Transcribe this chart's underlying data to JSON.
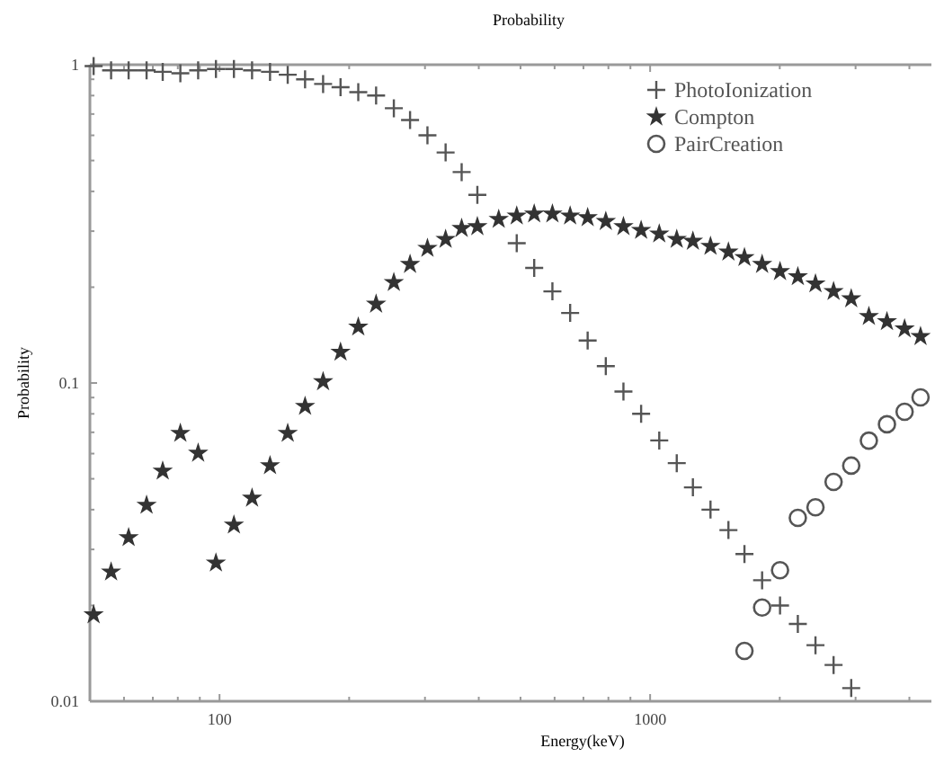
{
  "chart_data": {
    "type": "scatter",
    "title": "Probability",
    "xlabel": "Energy(keV)",
    "ylabel": "Probability",
    "log": "xy",
    "grid": false,
    "legend": "top right",
    "x": [
      51,
      56,
      61.5,
      67.7,
      73.8,
      81.1,
      89.2,
      98.1,
      108,
      119,
      131,
      144,
      158,
      174,
      191,
      210,
      231,
      254,
      277,
      304,
      335,
      365,
      397,
      445,
      490,
      538,
      593,
      652,
      716,
      789,
      867,
      953,
      1050,
      1153,
      1257,
      1381,
      1520,
      1656,
      1820,
      2003,
      2203,
      2421,
      2667,
      2931,
      3221,
      3548,
      3899,
      4246
    ],
    "xlim": [
      50,
      4500
    ],
    "xticks": [
      {
        "value": 60,
        "label": null
      },
      {
        "value": 70,
        "label": null
      },
      {
        "value": 80,
        "label": null
      },
      {
        "value": 90,
        "label": null
      },
      100,
      {
        "value": 200,
        "label": null
      },
      {
        "value": 300,
        "label": null
      },
      {
        "value": 400,
        "label": null
      },
      {
        "value": 500,
        "label": null
      },
      {
        "value": 600,
        "label": null
      },
      {
        "value": 700,
        "label": null
      },
      {
        "value": 800,
        "label": null
      },
      {
        "value": 900,
        "label": null
      },
      1000,
      {
        "value": 2000,
        "label": null
      },
      {
        "value": 3000,
        "label": null
      },
      {
        "value": 4000,
        "label": null
      }
    ],
    "ylim": [
      0.01,
      1
    ],
    "yticks": [
      0.01,
      {
        "value": 0.02,
        "label": null
      },
      {
        "value": 0.03,
        "label": null
      },
      {
        "value": 0.04,
        "label": null
      },
      {
        "value": 0.05,
        "label": null
      },
      {
        "value": 0.06,
        "label": null
      },
      {
        "value": 0.07,
        "label": null
      },
      {
        "value": 0.08,
        "label": null
      },
      {
        "value": 0.09,
        "label": null
      },
      0.1,
      {
        "value": 0.2,
        "label": null
      },
      {
        "value": 0.3,
        "label": null
      },
      {
        "value": 0.4,
        "label": null
      },
      {
        "value": 0.5,
        "label": null
      },
      {
        "value": 0.6,
        "label": null
      },
      {
        "value": 0.7,
        "label": null
      },
      {
        "value": 0.8,
        "label": null
      },
      {
        "value": 0.9,
        "label": null
      },
      1
    ],
    "series": [
      {
        "name": "PhotoIonization",
        "color": "#555555",
        "marker": "cross",
        "x": [
          51,
          56,
          61.5,
          67.7,
          73.8,
          81.1,
          89.2,
          98.1,
          108,
          119,
          131,
          144,
          158,
          174,
          191,
          210,
          231,
          254,
          277,
          304,
          335,
          365,
          397,
          490,
          538,
          593,
          652,
          716,
          789,
          867,
          953,
          1050,
          1153,
          1257,
          1381,
          1520,
          1656,
          1820,
          2003,
          2203,
          2421,
          2667,
          2931
        ],
        "values": [
          0.99,
          0.96,
          0.96,
          0.96,
          0.95,
          0.94,
          0.96,
          0.97,
          0.97,
          0.96,
          0.95,
          0.93,
          0.9,
          0.87,
          0.85,
          0.82,
          0.8,
          0.73,
          0.67,
          0.6,
          0.53,
          0.46,
          0.39,
          0.275,
          0.23,
          0.194,
          0.166,
          0.136,
          0.113,
          0.094,
          0.08,
          0.066,
          0.056,
          0.047,
          0.04,
          0.0345,
          0.029,
          0.024,
          0.02,
          0.0175,
          0.015,
          0.013,
          0.011
        ]
      },
      {
        "name": "Compton",
        "color": "#333333",
        "marker": "star",
        "values": [
          0.0187,
          0.0255,
          0.0327,
          0.0413,
          0.0529,
          0.0695,
          0.0602,
          0.0272,
          0.0358,
          0.0435,
          0.055,
          0.0695,
          0.0845,
          0.101,
          0.125,
          0.15,
          0.177,
          0.207,
          0.236,
          0.265,
          0.283,
          0.306,
          0.31,
          0.327,
          0.335,
          0.34,
          0.34,
          0.335,
          0.331,
          0.322,
          0.31,
          0.302,
          0.294,
          0.283,
          0.279,
          0.269,
          0.258,
          0.248,
          0.236,
          0.224,
          0.216,
          0.205,
          0.194,
          0.184,
          0.162,
          0.156,
          0.148,
          0.14
        ]
      },
      {
        "name": "PairCreation",
        "color": "#555555",
        "marker": "circle",
        "x": [
          1656,
          1820,
          2003,
          2203,
          2421,
          2667,
          2931,
          3221,
          3548,
          3899,
          4246
        ],
        "values": [
          0.0144,
          0.0197,
          0.0258,
          0.0377,
          0.0407,
          0.0489,
          0.055,
          0.0659,
          0.0742,
          0.0812,
          0.0901
        ]
      }
    ]
  }
}
